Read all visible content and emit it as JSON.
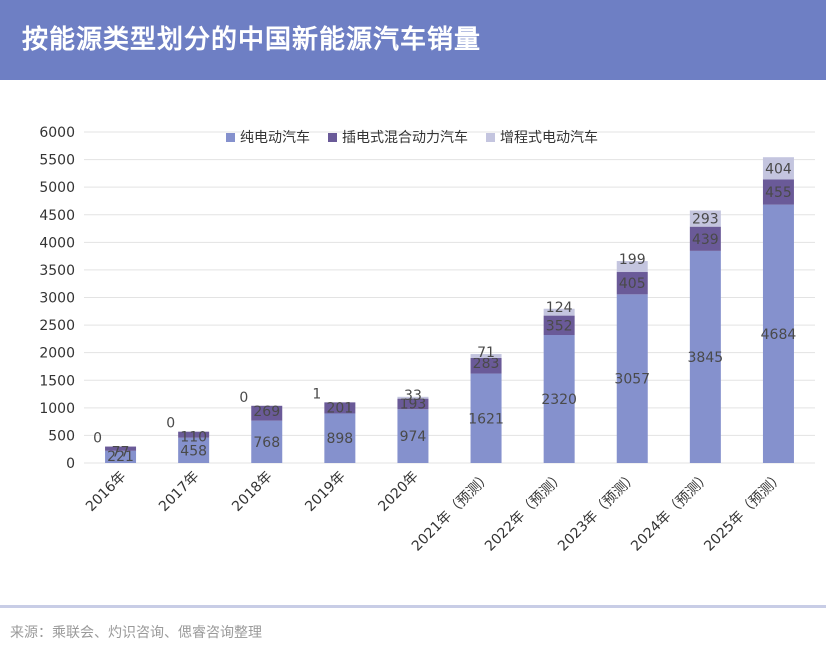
{
  "header": {
    "title": "按能源类型划分的中国新能源汽车销量"
  },
  "source": "来源：乘联会、灼识咨询、偲睿咨询整理",
  "colors": {
    "header_bg": "#6e7fc4",
    "bev": "#8591cd",
    "phev": "#6a5a98",
    "erev": "#c4c5df"
  },
  "chart_data": {
    "type": "bar",
    "stacked": true,
    "categories": [
      "2016年",
      "2017年",
      "2018年",
      "2019年",
      "2020年",
      "2021年（预测）",
      "2022年（预测）",
      "2023年（预测）",
      "2024年（预测）",
      "2025年（预测）"
    ],
    "series": [
      {
        "name": "纯电动汽车",
        "values": [
          221,
          458,
          768,
          898,
          974,
          1621,
          2320,
          3057,
          3845,
          4684
        ]
      },
      {
        "name": "插电式混合动力汽车",
        "values": [
          77,
          110,
          269,
          201,
          193,
          283,
          352,
          405,
          439,
          455
        ]
      },
      {
        "name": "增程式电动汽车",
        "values": [
          0,
          0,
          0,
          1,
          33,
          71,
          124,
          199,
          293,
          404
        ]
      }
    ],
    "ylim": [
      0,
      6000
    ],
    "yticks": [
      0,
      500,
      1000,
      1500,
      2000,
      2500,
      3000,
      3500,
      4000,
      4500,
      5000,
      5500,
      6000
    ],
    "grid": true,
    "legend": "top-center"
  }
}
